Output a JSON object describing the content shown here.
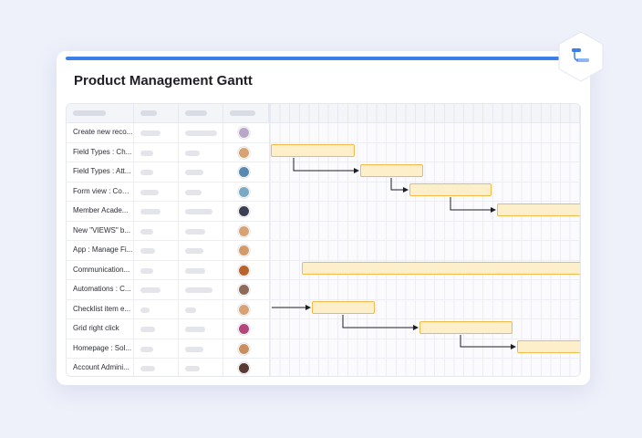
{
  "title": "Product Management Gantt",
  "colors": {
    "accent": "#3d7fe8",
    "bar_fill": "#fdefc9",
    "bar_border": "#f3b94a"
  },
  "badge_icon": "gantt-icon",
  "rows": [
    {
      "name": "Create new reco...",
      "avatar": "#b9a6c9"
    },
    {
      "name": "Field Types : Ch...",
      "avatar": "#d9a273"
    },
    {
      "name": "Field Types : Att...",
      "avatar": "#5a89b0"
    },
    {
      "name": "Form view : Com...",
      "avatar": "#7aa9c4"
    },
    {
      "name": "Member Acade...",
      "avatar": "#3c3f52"
    },
    {
      "name": "New \"VIEWS\" b...",
      "avatar": "#d9a273"
    },
    {
      "name": "App : Manage Fi...",
      "avatar": "#d49a6a"
    },
    {
      "name": "Communication...",
      "avatar": "#b8642f"
    },
    {
      "name": "Automations : C...",
      "avatar": "#8d6a5a"
    },
    {
      "name": "Checklist item e...",
      "avatar": "#d9a273"
    },
    {
      "name": "Grid right click",
      "avatar": "#b4477a"
    },
    {
      "name": "Homepage : Sol...",
      "avatar": "#c98f5e"
    },
    {
      "name": "Account Admini...",
      "avatar": "#5a3a32"
    }
  ]
}
